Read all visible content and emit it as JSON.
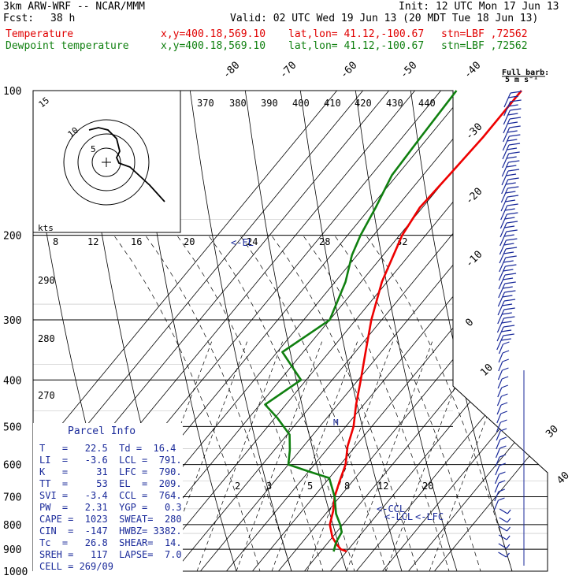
{
  "header": {
    "title": "3km ARW-WRF -- NCAR/MMM",
    "init": "Init: 12 UTC Mon 17 Jun 13",
    "fcst_label": "Fcst:",
    "fcst_value": "38 h",
    "valid": "Valid: 02 UTC Wed 19 Jun 13 (20 MDT Tue 18 Jun 13)",
    "temp_label": "Temperature",
    "dew_label": "Dewpoint temperature",
    "xy": "x,y=400.18,569.10",
    "latlon": "lat,lon= 41.12,-100.67",
    "stn": "stn=LBF ,72562"
  },
  "legend": {
    "full_barb": "Full barb:",
    "full_barb_value": "5 m s⁻¹"
  },
  "hodograph": {
    "units": "kts",
    "rings": [
      "5",
      "10",
      "15"
    ]
  },
  "parcel_info": {
    "title": "Parcel Info",
    "rows": [
      "T   =   22.5  Td =  16.4",
      "LI  =   -3.6  LCL =  791.",
      "K   =     31  LFC =  790.",
      "TT  =     53  EL  =  209.",
      "SVI =   -3.4  CCL =  764.",
      "PW  =   2.31  YGP =   0.3",
      "CAPE =  1023  SWEAT=  280",
      "CIN  =  -147  HWBZ= 3382.",
      "Tc  =   26.8  SHEAR=  14.",
      "SREH =   117  LAPSE=  7.0",
      "CELL = 269/09"
    ]
  },
  "markers": {
    "lcl": "<-LCL",
    "lfc": "<-LFC",
    "ccl": "<-CCL",
    "el": "<-EL",
    "m": "M"
  },
  "colors": {
    "temperature": "#ee0000",
    "dewpoint": "#108010",
    "barbs": "#1a2a9a",
    "mixing": "#000000"
  },
  "chart_data": {
    "type": "line",
    "title": "",
    "ylabel": "",
    "y_scale": "log pressure (hPa)",
    "pressure_levels": [
      100,
      200,
      300,
      400,
      500,
      600,
      700,
      800,
      900,
      1000
    ],
    "isotherm_labels": [
      "-80",
      "-70",
      "-60",
      "-50",
      "-40",
      "-30",
      "-20",
      "-10",
      "0",
      "10",
      "20",
      "30",
      "40"
    ],
    "theta_e_labels": [
      "370",
      "380",
      "390",
      "400",
      "410",
      "420",
      "430",
      "440"
    ],
    "mixing_ratio_labels_upper": [
      "8",
      "12",
      "16",
      "20",
      "24",
      "28",
      "32"
    ],
    "mixing_ratio_labels_lower": [
      "2",
      "3",
      "5",
      "8",
      "12",
      "20"
    ],
    "theta_labels": [
      "290",
      "280",
      "270"
    ],
    "series": [
      {
        "name": "Temperature",
        "points": [
          [
            910,
            20
          ],
          [
            900,
            17
          ],
          [
            880,
            14
          ],
          [
            850,
            10
          ],
          [
            800,
            5
          ],
          [
            750,
            2
          ],
          [
            700,
            -2
          ],
          [
            650,
            -5
          ],
          [
            600,
            -8
          ],
          [
            550,
            -13
          ],
          [
            500,
            -17
          ],
          [
            450,
            -23
          ],
          [
            400,
            -29
          ],
          [
            350,
            -36
          ],
          [
            300,
            -44
          ],
          [
            250,
            -52
          ],
          [
            200,
            -59
          ],
          [
            175,
            -61
          ],
          [
            150,
            -60
          ],
          [
            125,
            -59
          ],
          [
            110,
            -59
          ],
          [
            100,
            -59
          ]
        ]
      },
      {
        "name": "Dewpoint temperature",
        "points": [
          [
            910,
            15
          ],
          [
            890,
            14
          ],
          [
            870,
            13
          ],
          [
            830,
            12
          ],
          [
            800,
            9
          ],
          [
            760,
            4
          ],
          [
            700,
            -2
          ],
          [
            640,
            -10
          ],
          [
            620,
            -20
          ],
          [
            600,
            -30
          ],
          [
            560,
            -34
          ],
          [
            520,
            -39
          ],
          [
            480,
            -49
          ],
          [
            450,
            -58
          ],
          [
            400,
            -52
          ],
          [
            350,
            -68
          ],
          [
            300,
            -60
          ],
          [
            250,
            -66
          ],
          [
            220,
            -72
          ],
          [
            200,
            -75
          ],
          [
            175,
            -78
          ],
          [
            150,
            -82
          ],
          [
            125,
            -83
          ],
          [
            100,
            -84
          ]
        ]
      }
    ]
  }
}
